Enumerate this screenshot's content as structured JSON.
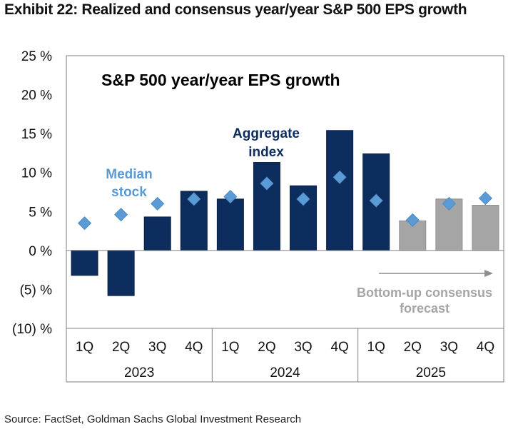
{
  "exhibit_title": "Exhibit 22: Realized and consensus year/year S&P 500 EPS growth",
  "source": "Source: FactSet, Goldman Sachs Global Investment Research",
  "colors": {
    "realized_bar": "#0d2d5e",
    "forecast_bar": "#a5a5a5",
    "median_marker": "#5b9bd5",
    "forecast_text": "#a5a5a5",
    "axis": "#7f7f7f"
  },
  "chart_data": {
    "type": "bar",
    "title": "S&P 500 year/year EPS growth",
    "categories": [
      "1Q",
      "2Q",
      "3Q",
      "4Q",
      "1Q",
      "2Q",
      "3Q",
      "4Q",
      "1Q",
      "2Q",
      "3Q",
      "4Q"
    ],
    "year_groups": [
      {
        "label": "2023",
        "count": 4
      },
      {
        "label": "2024",
        "count": 4
      },
      {
        "label": "2025",
        "count": 4
      }
    ],
    "series": [
      {
        "name": "Aggregate index",
        "type": "bar",
        "values": [
          -3.2,
          -5.8,
          4.3,
          7.6,
          6.6,
          11.3,
          8.3,
          15.4,
          12.4,
          3.8,
          6.6,
          5.8
        ]
      },
      {
        "name": "Median stock",
        "type": "marker",
        "values": [
          3.5,
          4.6,
          6.0,
          6.6,
          6.9,
          8.6,
          6.6,
          9.4,
          6.4,
          3.9,
          6.0,
          6.7
        ]
      }
    ],
    "forecast_start_index": 9,
    "forecast_label": [
      "Bottom-up consensus",
      "forecast"
    ],
    "ylim": [
      -10,
      25
    ],
    "yticks": [
      -10,
      -5,
      0,
      5,
      10,
      15,
      20,
      25
    ],
    "ytick_labels": [
      "(10) %",
      "(5) %",
      "0 %",
      "5 %",
      "10 %",
      "15 %",
      "20 %",
      "25 %"
    ],
    "annotations": {
      "aggregate": [
        "Aggregate",
        "index"
      ],
      "median": [
        "Median",
        "stock"
      ]
    },
    "grid": false,
    "legend": "none"
  }
}
